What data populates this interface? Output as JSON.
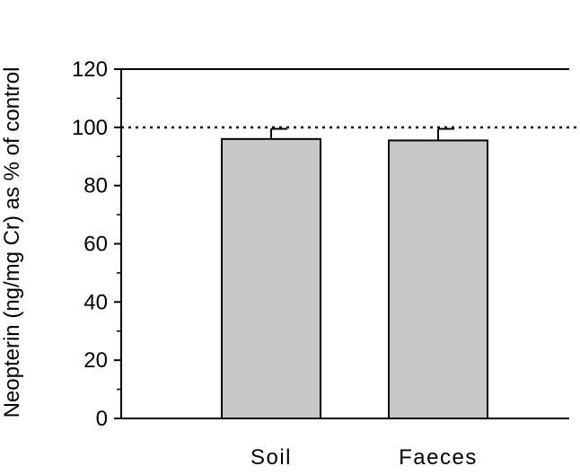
{
  "chart_data": {
    "type": "bar",
    "title": "",
    "xlabel": "",
    "ylabel": "Neopterin (ng/mg Cr) as % of control",
    "categories": [
      "Soil",
      "Faeces"
    ],
    "values": [
      96,
      95.5
    ],
    "error_upper": [
      99.5,
      99.5
    ],
    "ylim": [
      0,
      120
    ],
    "yticks": [
      0,
      20,
      40,
      60,
      80,
      100,
      120
    ],
    "reference_line": {
      "value": 100,
      "style": "dotted"
    },
    "grid": false,
    "legend": "none",
    "colors": {
      "bar_fill": "#c8c8c8",
      "stroke": "#000000"
    }
  }
}
